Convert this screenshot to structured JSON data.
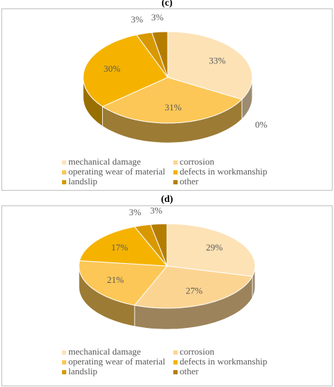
{
  "chart_data": [
    {
      "type": "pie",
      "title": "(c)",
      "categories": [
        "mechanical damage",
        "corrosion",
        "operating wear of material",
        "defects in workmanship",
        "landslip",
        "other"
      ],
      "values": [
        33,
        0,
        31,
        30,
        3,
        3
      ],
      "value_labels": [
        "33%",
        "0%",
        "31%",
        "30%",
        "3%",
        "3%"
      ],
      "colors": [
        "#fde2b6",
        "#fcd492",
        "#fcc756",
        "#f5b300",
        "#d89800",
        "#b57d00"
      ]
    },
    {
      "type": "pie",
      "title": "(d)",
      "categories": [
        "mechanical damage",
        "corrosion",
        "operating wear of material",
        "defects in workmanship",
        "landslip",
        "other"
      ],
      "values": [
        29,
        27,
        21,
        17,
        3,
        3
      ],
      "value_labels": [
        "29%",
        "27%",
        "21%",
        "17%",
        "3%",
        "3%"
      ],
      "colors": [
        "#fde2b6",
        "#fcd492",
        "#fcc756",
        "#f5b300",
        "#d89800",
        "#b57d00"
      ]
    }
  ]
}
